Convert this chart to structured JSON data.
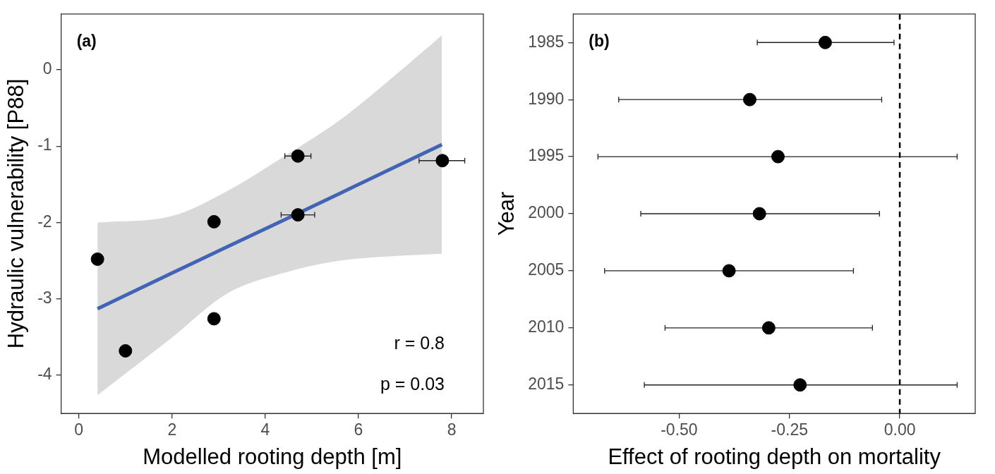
{
  "chart_data": [
    {
      "type": "scatter",
      "xlabel": "Modelled rooting depth [m]",
      "ylabel": "Hydraulic vulnerability [P88]",
      "xlim": [
        -0.38,
        8.68
      ],
      "ylim": [
        -4.5,
        0.73
      ],
      "xticks": [
        0,
        2,
        4,
        6,
        8
      ],
      "yticks": [
        0,
        -1,
        -2,
        -3,
        -4
      ],
      "annotations": [
        "(a)",
        "r = 0.8",
        "p = 0.03"
      ],
      "series": [
        {
          "marker": "circle",
          "color": "#000000",
          "x": [
            0.4,
            1.0,
            2.9,
            2.9,
            4.7,
            4.7,
            7.8
          ],
          "values": [
            -2.48,
            -3.68,
            -1.99,
            -3.26,
            -1.13,
            -1.9,
            -1.19
          ],
          "xerrors": [
            null,
            null,
            null,
            null,
            0.28,
            0.36,
            [
              7.3,
              8.28
            ]
          ]
        },
        {
          "type": "line",
          "marker": "none",
          "color": "#4363b5",
          "x": [
            0.4,
            1.97,
            3.18,
            4.39,
            5.6,
            6.79,
            7.79
          ],
          "values": [
            -3.13,
            -2.67,
            -2.32,
            -1.97,
            -1.62,
            -1.27,
            -0.98
          ],
          "lower": [
            -4.26,
            -3.52,
            -2.93,
            -2.66,
            -2.5,
            -2.44,
            -2.41
          ],
          "upper": [
            -2.0,
            -1.92,
            -1.59,
            -1.14,
            -0.66,
            -0.07,
            0.45
          ]
        }
      ]
    },
    {
      "type": "scatter",
      "orientation": "horizontal",
      "xlabel": "Effect of rooting depth on mortality",
      "ylabel": "Year",
      "categories": [
        "1985",
        "1990",
        "1995",
        "2000",
        "2005",
        "2010",
        "2015"
      ],
      "values": [
        -0.169,
        -0.34,
        -0.276,
        -0.318,
        -0.387,
        -0.297,
        -0.226
      ],
      "errors": [
        [
          -0.323,
          -0.013
        ],
        [
          -0.637,
          -0.041
        ],
        [
          -0.684,
          0.13
        ],
        [
          -0.587,
          -0.046
        ],
        [
          -0.669,
          -0.105
        ],
        [
          -0.532,
          -0.062
        ],
        [
          -0.579,
          0.13
        ]
      ],
      "color": "#000000",
      "marker": "circle",
      "xlim": [
        -0.74,
        0.171
      ],
      "xticks": [
        {
          "value": -0.5,
          "label": "-0.50"
        },
        {
          "value": -0.25,
          "label": "-0.25"
        },
        {
          "value": 0,
          "label": "0.00"
        }
      ],
      "ref_lines": [
        {
          "axis": "x",
          "value": 0,
          "line_style": "dashed",
          "color": "#000000"
        }
      ],
      "annotations": [
        "(b)"
      ]
    }
  ]
}
